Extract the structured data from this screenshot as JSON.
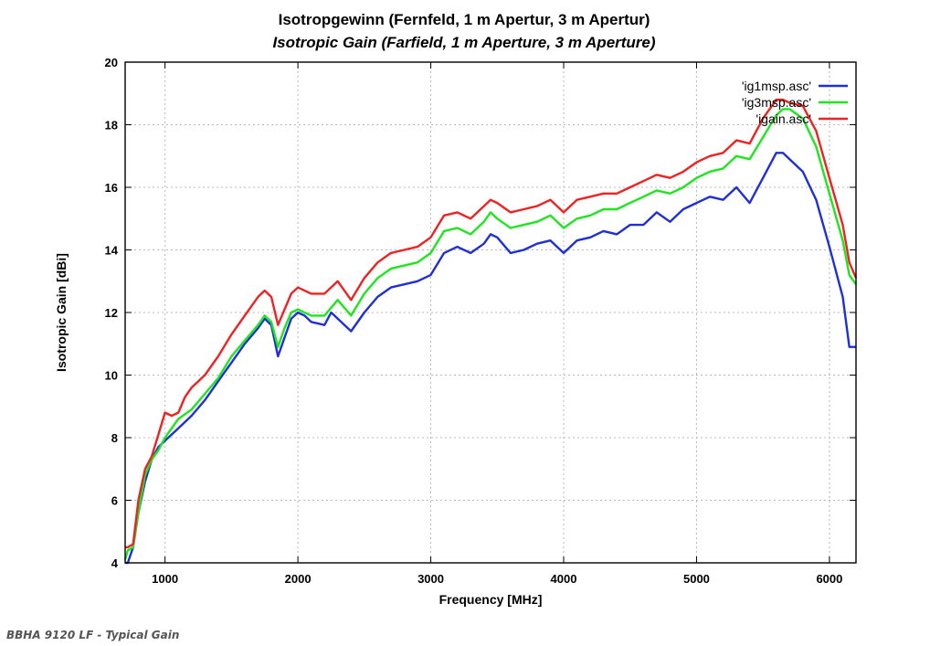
{
  "chart_data": {
    "type": "line",
    "title": "Isotropgewinn (Fernfeld, 1 m Apertur, 3 m Apertur)",
    "subtitle": "Isotropic Gain (Farfield, 1 m Aperture, 3 m Aperture)",
    "xlabel": "Frequency [MHz]",
    "ylabel": "Isotropic Gain [dBi]",
    "xlim": [
      700,
      6200
    ],
    "ylim": [
      4,
      20
    ],
    "x_ticks": [
      1000,
      2000,
      3000,
      4000,
      5000,
      6000
    ],
    "y_ticks": [
      4,
      6,
      8,
      10,
      12,
      14,
      16,
      18,
      20
    ],
    "grid": "dotted",
    "legend_position": "top-right",
    "series": [
      {
        "name": "'ig1msp.asc'",
        "color": "#1f2fd6",
        "points": [
          [
            700,
            4.0
          ],
          [
            720,
            4.0
          ],
          [
            760,
            4.5
          ],
          [
            800,
            5.6
          ],
          [
            850,
            6.6
          ],
          [
            900,
            7.3
          ],
          [
            950,
            7.7
          ],
          [
            1000,
            7.9
          ],
          [
            1100,
            8.3
          ],
          [
            1200,
            8.7
          ],
          [
            1300,
            9.2
          ],
          [
            1400,
            9.8
          ],
          [
            1500,
            10.4
          ],
          [
            1600,
            11.0
          ],
          [
            1700,
            11.5
          ],
          [
            1750,
            11.8
          ],
          [
            1800,
            11.6
          ],
          [
            1850,
            10.6
          ],
          [
            1900,
            11.2
          ],
          [
            1950,
            11.8
          ],
          [
            2000,
            12.0
          ],
          [
            2050,
            11.9
          ],
          [
            2100,
            11.7
          ],
          [
            2200,
            11.6
          ],
          [
            2250,
            12.0
          ],
          [
            2300,
            11.8
          ],
          [
            2400,
            11.4
          ],
          [
            2500,
            12.0
          ],
          [
            2600,
            12.5
          ],
          [
            2700,
            12.8
          ],
          [
            2800,
            12.9
          ],
          [
            2900,
            13.0
          ],
          [
            3000,
            13.2
          ],
          [
            3100,
            13.9
          ],
          [
            3200,
            14.1
          ],
          [
            3300,
            13.9
          ],
          [
            3400,
            14.2
          ],
          [
            3450,
            14.5
          ],
          [
            3500,
            14.4
          ],
          [
            3600,
            13.9
          ],
          [
            3700,
            14.0
          ],
          [
            3800,
            14.2
          ],
          [
            3900,
            14.3
          ],
          [
            4000,
            13.9
          ],
          [
            4100,
            14.3
          ],
          [
            4200,
            14.4
          ],
          [
            4300,
            14.6
          ],
          [
            4400,
            14.5
          ],
          [
            4500,
            14.8
          ],
          [
            4600,
            14.8
          ],
          [
            4700,
            15.2
          ],
          [
            4800,
            14.9
          ],
          [
            4900,
            15.3
          ],
          [
            5000,
            15.5
          ],
          [
            5100,
            15.7
          ],
          [
            5200,
            15.6
          ],
          [
            5300,
            16.0
          ],
          [
            5400,
            15.5
          ],
          [
            5500,
            16.3
          ],
          [
            5600,
            17.1
          ],
          [
            5650,
            17.1
          ],
          [
            5700,
            16.9
          ],
          [
            5800,
            16.5
          ],
          [
            5900,
            15.6
          ],
          [
            6000,
            14.1
          ],
          [
            6100,
            12.5
          ],
          [
            6150,
            10.9
          ],
          [
            6200,
            10.9
          ]
        ]
      },
      {
        "name": "'ig3msp.asc'",
        "color": "#1ee61e",
        "points": [
          [
            700,
            4.1
          ],
          [
            720,
            4.4
          ],
          [
            760,
            4.5
          ],
          [
            800,
            5.6
          ],
          [
            850,
            6.8
          ],
          [
            900,
            7.3
          ],
          [
            950,
            7.6
          ],
          [
            1000,
            8.0
          ],
          [
            1100,
            8.6
          ],
          [
            1200,
            8.9
          ],
          [
            1300,
            9.4
          ],
          [
            1400,
            9.9
          ],
          [
            1500,
            10.6
          ],
          [
            1600,
            11.1
          ],
          [
            1700,
            11.6
          ],
          [
            1750,
            11.9
          ],
          [
            1800,
            11.7
          ],
          [
            1850,
            10.9
          ],
          [
            1900,
            11.5
          ],
          [
            1950,
            12.0
          ],
          [
            2000,
            12.1
          ],
          [
            2100,
            11.9
          ],
          [
            2200,
            11.9
          ],
          [
            2300,
            12.4
          ],
          [
            2400,
            11.9
          ],
          [
            2500,
            12.6
          ],
          [
            2600,
            13.1
          ],
          [
            2700,
            13.4
          ],
          [
            2800,
            13.5
          ],
          [
            2900,
            13.6
          ],
          [
            3000,
            13.9
          ],
          [
            3100,
            14.6
          ],
          [
            3200,
            14.7
          ],
          [
            3300,
            14.5
          ],
          [
            3400,
            14.9
          ],
          [
            3450,
            15.2
          ],
          [
            3500,
            15.0
          ],
          [
            3600,
            14.7
          ],
          [
            3700,
            14.8
          ],
          [
            3800,
            14.9
          ],
          [
            3900,
            15.1
          ],
          [
            4000,
            14.7
          ],
          [
            4100,
            15.0
          ],
          [
            4200,
            15.1
          ],
          [
            4300,
            15.3
          ],
          [
            4400,
            15.3
          ],
          [
            4500,
            15.5
          ],
          [
            4600,
            15.7
          ],
          [
            4700,
            15.9
          ],
          [
            4800,
            15.8
          ],
          [
            4900,
            16.0
          ],
          [
            5000,
            16.3
          ],
          [
            5100,
            16.5
          ],
          [
            5200,
            16.6
          ],
          [
            5300,
            17.0
          ],
          [
            5400,
            16.9
          ],
          [
            5500,
            17.6
          ],
          [
            5600,
            18.3
          ],
          [
            5650,
            18.5
          ],
          [
            5700,
            18.5
          ],
          [
            5800,
            18.2
          ],
          [
            5900,
            17.3
          ],
          [
            6000,
            15.8
          ],
          [
            6100,
            14.3
          ],
          [
            6150,
            13.2
          ],
          [
            6200,
            12.9
          ]
        ]
      },
      {
        "name": "'igain.asc'",
        "color": "#ee2222",
        "points": [
          [
            700,
            4.5
          ],
          [
            720,
            4.5
          ],
          [
            760,
            4.6
          ],
          [
            800,
            6.0
          ],
          [
            850,
            7.0
          ],
          [
            900,
            7.4
          ],
          [
            950,
            8.1
          ],
          [
            1000,
            8.8
          ],
          [
            1050,
            8.7
          ],
          [
            1100,
            8.8
          ],
          [
            1150,
            9.3
          ],
          [
            1200,
            9.6
          ],
          [
            1300,
            10.0
          ],
          [
            1400,
            10.6
          ],
          [
            1500,
            11.3
          ],
          [
            1600,
            11.9
          ],
          [
            1700,
            12.5
          ],
          [
            1750,
            12.7
          ],
          [
            1800,
            12.5
          ],
          [
            1850,
            11.6
          ],
          [
            1900,
            12.1
          ],
          [
            1950,
            12.6
          ],
          [
            2000,
            12.8
          ],
          [
            2100,
            12.6
          ],
          [
            2200,
            12.6
          ],
          [
            2300,
            13.0
          ],
          [
            2400,
            12.4
          ],
          [
            2500,
            13.1
          ],
          [
            2600,
            13.6
          ],
          [
            2700,
            13.9
          ],
          [
            2800,
            14.0
          ],
          [
            2900,
            14.1
          ],
          [
            3000,
            14.4
          ],
          [
            3100,
            15.1
          ],
          [
            3200,
            15.2
          ],
          [
            3300,
            15.0
          ],
          [
            3400,
            15.4
          ],
          [
            3450,
            15.6
          ],
          [
            3500,
            15.5
          ],
          [
            3600,
            15.2
          ],
          [
            3700,
            15.3
          ],
          [
            3800,
            15.4
          ],
          [
            3900,
            15.6
          ],
          [
            4000,
            15.2
          ],
          [
            4100,
            15.6
          ],
          [
            4200,
            15.7
          ],
          [
            4300,
            15.8
          ],
          [
            4400,
            15.8
          ],
          [
            4500,
            16.0
          ],
          [
            4600,
            16.2
          ],
          [
            4700,
            16.4
          ],
          [
            4800,
            16.3
          ],
          [
            4900,
            16.5
          ],
          [
            5000,
            16.8
          ],
          [
            5100,
            17.0
          ],
          [
            5200,
            17.1
          ],
          [
            5300,
            17.5
          ],
          [
            5400,
            17.4
          ],
          [
            5500,
            18.2
          ],
          [
            5600,
            18.8
          ],
          [
            5650,
            18.8
          ],
          [
            5700,
            18.7
          ],
          [
            5800,
            18.6
          ],
          [
            5900,
            17.8
          ],
          [
            6000,
            16.3
          ],
          [
            6100,
            14.8
          ],
          [
            6150,
            13.6
          ],
          [
            6200,
            13.1
          ]
        ]
      }
    ]
  },
  "caption": "BBHA 9120 LF - Typical Gain"
}
